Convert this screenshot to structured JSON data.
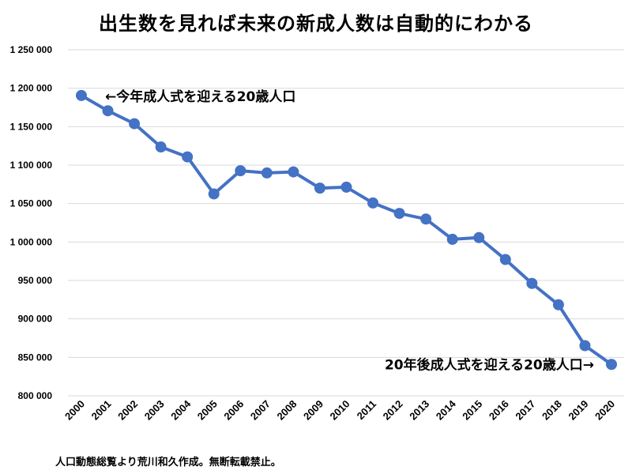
{
  "chart_data": {
    "type": "line",
    "title": "出生数を見れば未来の新成人数は自動的にわかる",
    "x": [
      "2000",
      "2001",
      "2002",
      "2003",
      "2004",
      "2005",
      "2006",
      "2007",
      "2008",
      "2009",
      "2010",
      "2011",
      "2012",
      "2013",
      "2014",
      "2015",
      "2016",
      "2017",
      "2018",
      "2019",
      "2020"
    ],
    "values": [
      1190547,
      1170662,
      1153855,
      1123610,
      1110721,
      1062530,
      1092674,
      1089818,
      1091156,
      1070036,
      1071304,
      1050806,
      1037231,
      1029817,
      1003539,
      1005721,
      977242,
      946146,
      918400,
      865239,
      840835
    ],
    "ylim": [
      800000,
      1250000
    ],
    "yticks": [
      800000,
      850000,
      900000,
      950000,
      1000000,
      1050000,
      1100000,
      1150000,
      1200000,
      1250000
    ],
    "ytick_labels": [
      "800 000",
      "850 000",
      "900 000",
      "950 000",
      "1 000 000",
      "1 050 000",
      "1 100 000",
      "1 150 000",
      "1 200 000",
      "1 250 000"
    ],
    "grid": true,
    "line_color": "#4472c4",
    "annotations": [
      {
        "text": "←今年成人式を迎える20歳人口",
        "anchor_x": "2000",
        "side": "right"
      },
      {
        "text": "20年後成人式を迎える20歳人口→",
        "anchor_x": "2020",
        "side": "left"
      }
    ]
  },
  "source_note": "人口動態総覧より荒川和久作成。無断転載禁止。"
}
